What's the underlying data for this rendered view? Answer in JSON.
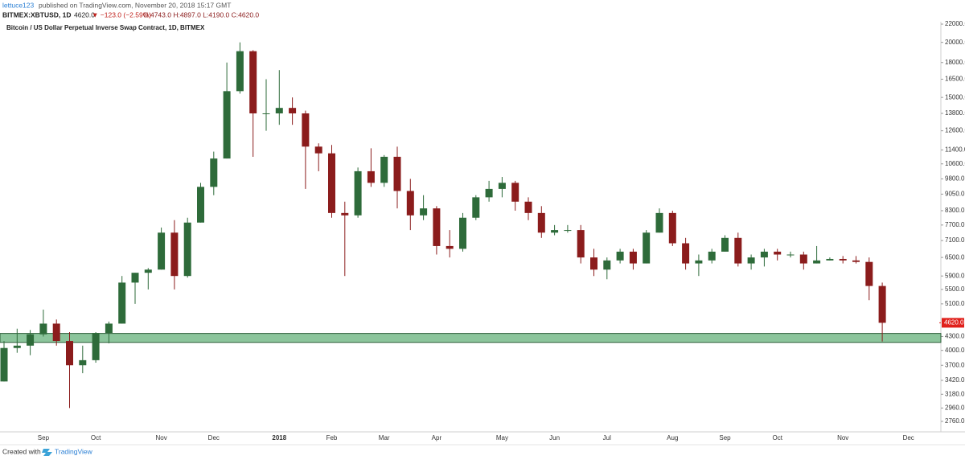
{
  "header": {
    "user": "lettuce123",
    "published": "published on TradingView.com, November 20, 2018 15:17 GMT",
    "symbol": "BITMEX:XBTUSD, 1D",
    "price": "4620.0",
    "change": "▼ −123.0 (−2.59%)",
    "ohlc": "O:4743.0 H:4897.0 L:4190.0 C:4620.0"
  },
  "footer": {
    "created_with": "Created with",
    "brand": "TradingView"
  },
  "chart_data": {
    "type": "candlestick",
    "title": "Bitcoin / US Dollar Perpetual Inverse Swap Contract, 1D, BITMEX",
    "log_scale": true,
    "grid": false,
    "up_color": "#2e6b3a",
    "down_color": "#8b1c1c",
    "ylim": [
      2613,
      22280
    ],
    "yticks": [
      {
        "value": 2760,
        "label": "2760.0"
      },
      {
        "value": 2960,
        "label": "2960.0"
      },
      {
        "value": 3180,
        "label": "3180.0"
      },
      {
        "value": 3420,
        "label": "3420.0"
      },
      {
        "value": 3700,
        "label": "3700.0"
      },
      {
        "value": 4000,
        "label": "4000.0"
      },
      {
        "value": 4300,
        "label": "4300.0"
      },
      {
        "value": 5100,
        "label": "5100.0"
      },
      {
        "value": 5500,
        "label": "5500.0"
      },
      {
        "value": 5900,
        "label": "5900.0"
      },
      {
        "value": 6500,
        "label": "6500.0"
      },
      {
        "value": 7100,
        "label": "7100.0"
      },
      {
        "value": 7700,
        "label": "7700.0"
      },
      {
        "value": 8300,
        "label": "8300.0"
      },
      {
        "value": 9050,
        "label": "9050.0"
      },
      {
        "value": 9800,
        "label": "9800.0"
      },
      {
        "value": 10600,
        "label": "10600.0"
      },
      {
        "value": 11400,
        "label": "11400.0"
      },
      {
        "value": 12600,
        "label": "12600.0"
      },
      {
        "value": 13800,
        "label": "13800.0"
      },
      {
        "value": 15000,
        "label": "15000.0"
      },
      {
        "value": 16500,
        "label": "16500.0"
      },
      {
        "value": 18000,
        "label": "18000.0"
      },
      {
        "value": 20000,
        "label": "20000.0"
      },
      {
        "value": 22000,
        "label": "22000.0"
      }
    ],
    "zone": {
      "low": 4170,
      "high": 4370,
      "color": "#8cc59c"
    },
    "last_price": {
      "value": 4620,
      "label": "4620.0",
      "color": "#e0201b"
    },
    "categories": [
      null,
      null,
      null,
      "Sep",
      null,
      null,
      null,
      "Oct",
      null,
      null,
      null,
      null,
      "Nov",
      null,
      null,
      null,
      "Dec",
      null,
      null,
      null,
      null,
      "2018",
      null,
      null,
      null,
      "Feb",
      null,
      null,
      null,
      "Mar",
      null,
      null,
      null,
      "Apr",
      null,
      null,
      null,
      null,
      "May",
      null,
      null,
      null,
      "Jun",
      null,
      null,
      null,
      "Jul",
      null,
      null,
      null,
      null,
      "Aug",
      null,
      null,
      null,
      "Sep",
      null,
      null,
      null,
      "Oct",
      null,
      null,
      null,
      null,
      "Nov",
      null,
      null,
      null,
      null,
      "Dec",
      null,
      null
    ],
    "open": [
      3400,
      4050,
      4100,
      4350,
      4600,
      4200,
      3700,
      3800,
      4380,
      4600,
      5700,
      6000,
      6100,
      7400,
      5900,
      7800,
      9400,
      10900,
      15500,
      19100,
      13800,
      13800,
      14200,
      13800,
      11600,
      11200,
      8200,
      8100,
      10200,
      9600,
      11000,
      9200,
      8100,
      8400,
      6900,
      6800,
      8000,
      8900,
      9300,
      9600,
      8700,
      8200,
      7400,
      7500,
      7500,
      6500,
      6100,
      6400,
      6700,
      6300,
      7400,
      8200,
      7000,
      6300,
      6400,
      6700,
      7200,
      6300,
      6500,
      6700,
      6600,
      6600,
      6300,
      6400,
      6450,
      6400,
      6350,
      5600,
      null,
      null,
      null,
      null
    ],
    "high": [
      4200,
      4480,
      4450,
      4950,
      4700,
      4400,
      4100,
      4400,
      4650,
      5900,
      6000,
      6150,
      7600,
      7900,
      8000,
      9600,
      11300,
      18000,
      20000,
      19200,
      16500,
      17300,
      15000,
      14000,
      11800,
      11700,
      8700,
      10400,
      11500,
      11100,
      11600,
      9800,
      9000,
      8500,
      7500,
      8200,
      9000,
      9700,
      9900,
      9700,
      8900,
      8500,
      7700,
      7700,
      7700,
      6800,
      6500,
      6800,
      6800,
      7500,
      8400,
      8300,
      7200,
      6600,
      6800,
      7300,
      7400,
      6600,
      6800,
      6800,
      6700,
      6700,
      6900,
      6500,
      6550,
      6550,
      6500,
      5700,
      null,
      null,
      null,
      null
    ],
    "low": [
      3400,
      3950,
      3900,
      4300,
      4100,
      2960,
      3550,
      3750,
      4150,
      4600,
      5100,
      5500,
      6100,
      5500,
      5850,
      7800,
      9000,
      10900,
      15300,
      11000,
      12600,
      13000,
      13000,
      9300,
      10200,
      8000,
      5900,
      8000,
      9400,
      9400,
      8400,
      7500,
      7900,
      6600,
      6500,
      6700,
      7900,
      8700,
      8900,
      8300,
      7900,
      7200,
      7300,
      7400,
      6300,
      5900,
      5800,
      6300,
      6100,
      6300,
      7400,
      6900,
      6100,
      5900,
      6300,
      6700,
      6200,
      6100,
      6200,
      6400,
      6500,
      6100,
      6300,
      6400,
      6300,
      6300,
      5200,
      4190,
      null,
      null,
      null,
      null
    ],
    "close": [
      4050,
      4100,
      4350,
      4600,
      4200,
      3700,
      3800,
      4380,
      4600,
      5700,
      6000,
      6100,
      7400,
      5900,
      7800,
      9400,
      10900,
      15500,
      19100,
      13800,
      13800,
      14200,
      13800,
      11600,
      11200,
      8200,
      8100,
      10200,
      9600,
      11000,
      9200,
      8100,
      8400,
      6900,
      6800,
      8000,
      8900,
      9300,
      9600,
      8700,
      8200,
      7400,
      7500,
      7500,
      6500,
      6100,
      6400,
      6700,
      6300,
      7400,
      8200,
      7000,
      6300,
      6400,
      6700,
      7200,
      6300,
      6500,
      6700,
      6600,
      6600,
      6300,
      6400,
      6450,
      6400,
      6350,
      5600,
      4620,
      null,
      null,
      null,
      null
    ]
  }
}
